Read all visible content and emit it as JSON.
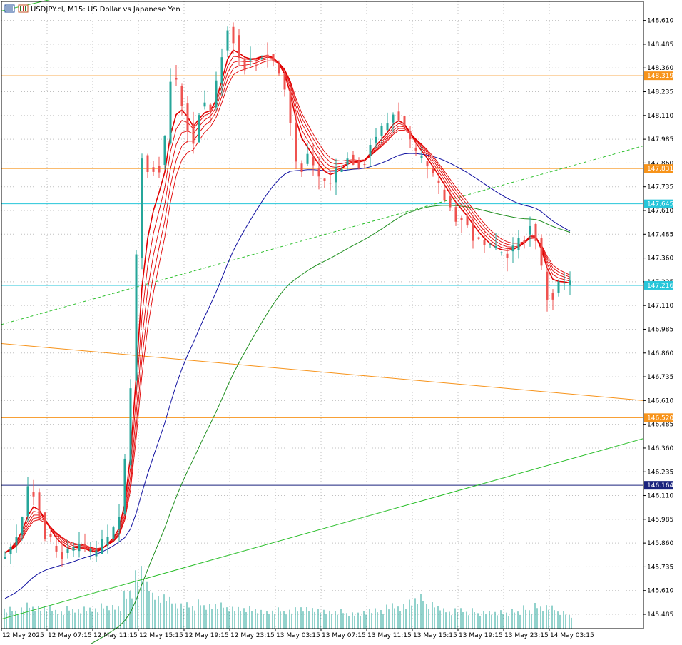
{
  "header": {
    "title": "USDJPY.cl, M15:  US Dollar vs Japanese Yen"
  },
  "colors": {
    "bull": "#26a69a",
    "bear": "#ef5350",
    "grid": "#c0c0c0",
    "orange_level": "#f7931a",
    "cyan_level": "#26c6da",
    "navy_level": "#1a237e",
    "ribbon": "#e00000",
    "ma_blue": "#1010a0",
    "ma_green": "#1f8f1f",
    "trend_green": "#2bbf2b"
  },
  "chart_data": {
    "type": "candlestick",
    "symbol": "USDJPY.cl",
    "timeframe": "M15",
    "y_ticks": [
      "148.610",
      "148.485",
      "148.360",
      "148.235",
      "148.110",
      "147.985",
      "147.860",
      "147.735",
      "147.610",
      "147.485",
      "147.360",
      "147.235",
      "147.110",
      "146.985",
      "146.860",
      "146.735",
      "146.610",
      "146.485",
      "146.360",
      "146.235",
      "146.110",
      "145.985",
      "145.860",
      "145.735",
      "145.610",
      "145.485"
    ],
    "ylim": [
      145.41,
      148.71
    ],
    "x_ticks": [
      "12 May 2025",
      "12 May 07:15",
      "12 May 11:15",
      "12 May 15:15",
      "12 May 19:15",
      "12 May 23:15",
      "13 May 03:15",
      "13 May 07:15",
      "13 May 11:15",
      "13 May 15:15",
      "13 May 19:15",
      "13 May 23:15",
      "14 May 03:15"
    ],
    "level_tags": [
      {
        "label": "148.319",
        "value": 148.319,
        "color": "#f7931a"
      },
      {
        "label": "147.831",
        "value": 147.831,
        "color": "#f7931a"
      },
      {
        "label": "147.645",
        "value": 147.645,
        "color": "#26c6da"
      },
      {
        "label": "147.216",
        "value": 147.216,
        "color": "#26c6da"
      },
      {
        "label": "146.520",
        "value": 146.52,
        "color": "#f7931a"
      },
      {
        "label": "146.164",
        "value": 146.164,
        "color": "#1a237e"
      }
    ],
    "close_path": [
      [
        0,
        145.78
      ],
      [
        3,
        145.95
      ],
      [
        5,
        146.18
      ],
      [
        7,
        145.95
      ],
      [
        9,
        145.82
      ],
      [
        12,
        145.8
      ],
      [
        14,
        145.85
      ],
      [
        16,
        145.78
      ],
      [
        18,
        145.88
      ],
      [
        20,
        145.95
      ],
      [
        21,
        146.08
      ],
      [
        22,
        146.45
      ],
      [
        23,
        146.95
      ],
      [
        24,
        147.8
      ],
      [
        25,
        148.0
      ],
      [
        26,
        147.7
      ],
      [
        27,
        147.95
      ],
      [
        28,
        147.75
      ],
      [
        29,
        148.2
      ],
      [
        30,
        148.4
      ],
      [
        31,
        148.15
      ],
      [
        32,
        148.2
      ],
      [
        33,
        147.9
      ],
      [
        34,
        148.05
      ],
      [
        35,
        148.25
      ],
      [
        36,
        148.1
      ],
      [
        37,
        148.2
      ],
      [
        38,
        148.35
      ],
      [
        39,
        148.55
      ],
      [
        40,
        148.6
      ],
      [
        41,
        148.45
      ],
      [
        42,
        148.38
      ],
      [
        44,
        148.4
      ],
      [
        46,
        148.45
      ],
      [
        48,
        148.38
      ],
      [
        50,
        148.2
      ],
      [
        51,
        147.95
      ],
      [
        52,
        147.8
      ],
      [
        53,
        147.9
      ],
      [
        55,
        147.8
      ],
      [
        57,
        147.75
      ],
      [
        59,
        147.85
      ],
      [
        61,
        147.9
      ],
      [
        63,
        147.85
      ],
      [
        65,
        148.0
      ],
      [
        67,
        148.05
      ],
      [
        69,
        148.15
      ],
      [
        71,
        148.0
      ],
      [
        72,
        147.9
      ],
      [
        74,
        147.85
      ],
      [
        75,
        147.8
      ],
      [
        77,
        147.7
      ],
      [
        79,
        147.6
      ],
      [
        81,
        147.55
      ],
      [
        83,
        147.45
      ],
      [
        85,
        147.4
      ],
      [
        87,
        147.38
      ],
      [
        89,
        147.4
      ],
      [
        91,
        147.45
      ],
      [
        93,
        147.55
      ],
      [
        94,
        147.4
      ],
      [
        95,
        147.2
      ],
      [
        96,
        147.12
      ],
      [
        97,
        147.2
      ],
      [
        98,
        147.24
      ],
      [
        99,
        147.22
      ],
      [
        100,
        147.22
      ]
    ],
    "volume_ref": [
      [
        0,
        0.28
      ],
      [
        5,
        0.38
      ],
      [
        10,
        0.3
      ],
      [
        15,
        0.35
      ],
      [
        20,
        0.4
      ],
      [
        22,
        0.65
      ],
      [
        24,
        1.0
      ],
      [
        25,
        0.8
      ],
      [
        26,
        0.55
      ],
      [
        30,
        0.45
      ],
      [
        35,
        0.38
      ],
      [
        40,
        0.35
      ],
      [
        45,
        0.3
      ],
      [
        50,
        0.32
      ],
      [
        55,
        0.28
      ],
      [
        60,
        0.26
      ],
      [
        65,
        0.3
      ],
      [
        70,
        0.38
      ],
      [
        72,
        0.55
      ],
      [
        74,
        0.4
      ],
      [
        78,
        0.3
      ],
      [
        82,
        0.28
      ],
      [
        86,
        0.25
      ],
      [
        90,
        0.3
      ],
      [
        93,
        0.35
      ],
      [
        96,
        0.33
      ],
      [
        100,
        0.22
      ]
    ]
  }
}
